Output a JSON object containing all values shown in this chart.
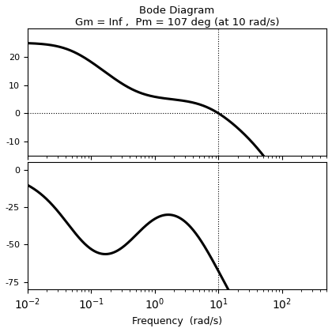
{
  "title": "Bode Diagram",
  "subtitle": "Gm = Inf ,  Pm = 107 deg (at 10 rad/s)",
  "xlabel": "Frequency  (rad/s)",
  "freq_range": [
    0.01,
    500
  ],
  "mag_ylim": [
    -15,
    30
  ],
  "phase_ylim": [
    -80,
    5
  ],
  "mag_yticks": [
    20,
    10,
    0,
    -10
  ],
  "phase_yticks": [
    0,
    -25,
    -50,
    -75
  ],
  "crossover_freq": 10,
  "line_color": "#000000",
  "line_width": 2.2,
  "background_color": "#ffffff",
  "title_fontsize": 9.5,
  "tick_fontsize": 8,
  "label_fontsize": 9,
  "figsize": [
    4.2,
    4.2
  ],
  "dpi": 100
}
